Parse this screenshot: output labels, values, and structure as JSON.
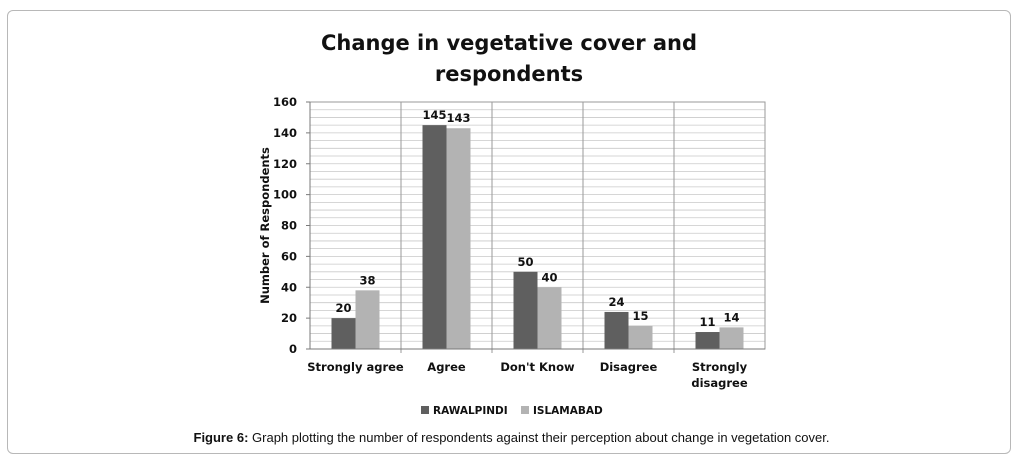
{
  "caption": {
    "label": "Figure 6:",
    "text": "Graph plotting the number of respondents against their perception about change in vegetation cover."
  },
  "chart_data": {
    "type": "bar",
    "title_lines": [
      "Change in vegetative cover and",
      "respondents"
    ],
    "ylabel": "Number of Respondents",
    "xlabel": "",
    "ylim": [
      0,
      160
    ],
    "y_ticks": [
      0,
      20,
      40,
      60,
      80,
      100,
      120,
      140,
      160
    ],
    "categories": [
      [
        "Strongly agree"
      ],
      [
        "Agree"
      ],
      [
        "Don't Know"
      ],
      [
        "Disagree"
      ],
      [
        "Strongly",
        "disagree"
      ]
    ],
    "series": [
      {
        "name": "RAWALPINDI",
        "color": "#5f5f5f",
        "values": [
          20,
          145,
          50,
          24,
          11
        ]
      },
      {
        "name": "ISLAMABAD",
        "color": "#b3b3b3",
        "values": [
          38,
          143,
          40,
          15,
          14
        ]
      }
    ],
    "grid": true,
    "legend_position": "bottom"
  }
}
